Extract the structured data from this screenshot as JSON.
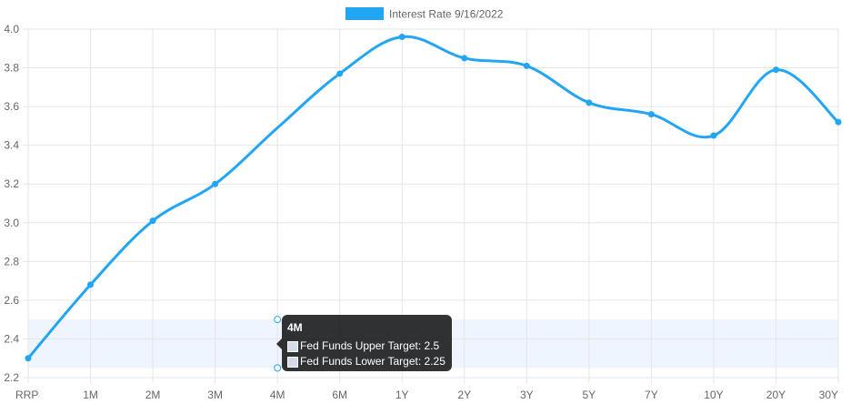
{
  "chart_data": {
    "type": "line",
    "categories": [
      "RRP",
      "1M",
      "2M",
      "3M",
      "4M",
      "6M",
      "1Y",
      "2Y",
      "3Y",
      "5Y",
      "7Y",
      "10Y",
      "20Y",
      "30Y"
    ],
    "series": [
      {
        "name": "Interest Rate 9/16/2022",
        "values": [
          2.3,
          2.68,
          3.01,
          3.2,
          3.49,
          3.77,
          3.96,
          3.85,
          3.81,
          3.62,
          3.56,
          3.45,
          3.79,
          3.52
        ],
        "color": "#22a6f4"
      }
    ],
    "band": {
      "upper_label": "Fed Funds Upper Target",
      "lower_label": "Fed Funds Lower Target",
      "upper": 2.5,
      "lower": 2.25,
      "color": "#eef5fe"
    },
    "yticks": [
      "2.2",
      "2.4",
      "2.6",
      "2.8",
      "3.0",
      "3.2",
      "3.4",
      "3.6",
      "3.8",
      "4.0"
    ],
    "ylim": [
      2.2,
      4.0
    ],
    "grid": true,
    "legend_position": "top-center"
  },
  "tooltip": {
    "title": "4M",
    "rows": [
      "Fed Funds Upper Target: 2.5",
      "Fed Funds Lower Target: 2.25"
    ]
  }
}
